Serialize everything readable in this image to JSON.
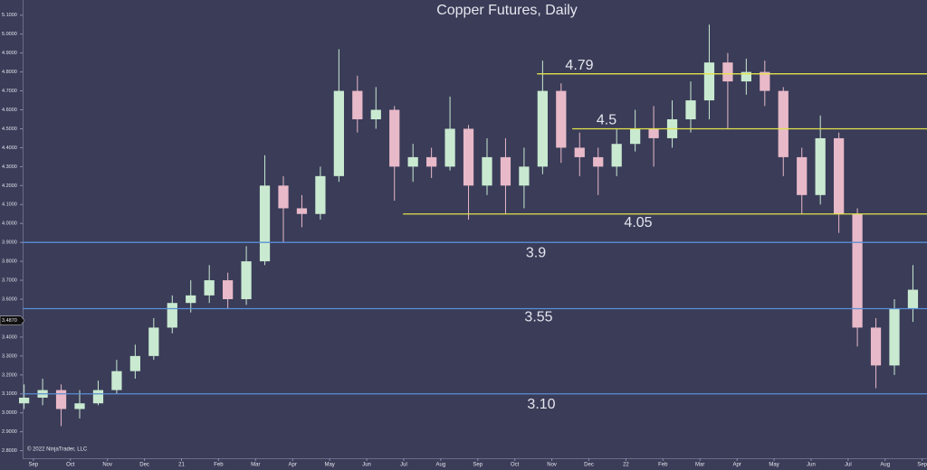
{
  "chart_data": {
    "type": "candlestick",
    "title": "Copper Futures, Daily",
    "copyright": "© 2022 NinjaTrader, LLC",
    "x": [
      -0.25,
      0.25,
      0.75,
      1.25,
      1.75,
      2.25,
      2.75,
      3.25,
      3.75,
      4.25,
      4.75,
      5.25,
      5.75,
      6.25,
      6.75,
      7.25,
      7.75,
      8.25,
      8.75,
      9.25,
      9.75,
      10.25,
      10.75,
      11.25,
      11.75,
      12.25,
      12.75,
      13.25,
      13.75,
      14.25,
      14.75,
      15.25,
      15.75,
      16.25,
      16.75,
      17.25,
      17.75,
      18.25,
      18.75,
      19.25,
      19.75,
      20.25,
      20.75,
      21.25,
      21.75,
      22.25,
      22.75,
      23.25,
      23.75
    ],
    "open": [
      3.05,
      3.08,
      3.12,
      3.02,
      3.05,
      3.12,
      3.22,
      3.3,
      3.45,
      3.58,
      3.62,
      3.7,
      3.6,
      3.8,
      4.2,
      4.08,
      4.05,
      4.25,
      4.7,
      4.55,
      4.6,
      4.3,
      4.35,
      4.3,
      4.5,
      4.2,
      4.35,
      4.2,
      4.3,
      4.7,
      4.4,
      4.35,
      4.3,
      4.42,
      4.5,
      4.45,
      4.55,
      4.65,
      4.85,
      4.75,
      4.8,
      4.7,
      4.35,
      4.15,
      4.45,
      4.05,
      3.45,
      3.25,
      3.55
    ],
    "high": [
      3.15,
      3.18,
      3.15,
      3.12,
      3.17,
      3.28,
      3.36,
      3.5,
      3.62,
      3.7,
      3.78,
      3.74,
      3.88,
      4.36,
      4.25,
      4.15,
      4.3,
      4.92,
      4.78,
      4.72,
      4.62,
      4.42,
      4.4,
      4.67,
      4.52,
      4.45,
      4.45,
      4.4,
      4.86,
      4.74,
      4.48,
      4.4,
      4.5,
      4.6,
      4.62,
      4.65,
      4.75,
      5.05,
      4.9,
      4.87,
      4.86,
      4.72,
      4.4,
      4.57,
      4.48,
      4.08,
      3.5,
      3.6,
      3.78
    ],
    "low": [
      3.02,
      3.04,
      2.93,
      2.97,
      3.04,
      3.1,
      3.18,
      3.28,
      3.42,
      3.53,
      3.58,
      3.55,
      3.57,
      3.78,
      3.9,
      3.98,
      4.02,
      4.22,
      4.48,
      4.5,
      4.12,
      4.22,
      4.24,
      4.28,
      4.02,
      4.15,
      4.05,
      4.08,
      4.26,
      4.32,
      4.25,
      4.15,
      4.25,
      4.38,
      4.3,
      4.4,
      4.48,
      4.55,
      4.5,
      4.68,
      4.62,
      4.25,
      4.05,
      4.1,
      3.95,
      3.35,
      3.13,
      3.2,
      3.48
    ],
    "close": [
      3.08,
      3.12,
      3.02,
      3.05,
      3.12,
      3.22,
      3.3,
      3.45,
      3.58,
      3.62,
      3.7,
      3.6,
      3.8,
      4.2,
      4.08,
      4.05,
      4.25,
      4.7,
      4.55,
      4.6,
      4.3,
      4.35,
      4.3,
      4.5,
      4.2,
      4.35,
      4.2,
      4.3,
      4.7,
      4.4,
      4.35,
      4.3,
      4.42,
      4.5,
      4.45,
      4.55,
      4.65,
      4.85,
      4.75,
      4.8,
      4.7,
      4.35,
      4.15,
      4.45,
      4.05,
      3.45,
      3.25,
      3.55,
      3.65
    ],
    "up_color": "#c9ead0",
    "down_color": "#e8b9c8",
    "xlim": [
      -0.29,
      24.13
    ],
    "xticks": [
      {
        "value": 0,
        "label": "Sep"
      },
      {
        "value": 1,
        "label": "Oct"
      },
      {
        "value": 2,
        "label": "Nov"
      },
      {
        "value": 3,
        "label": "Dec"
      },
      {
        "value": 4,
        "label": "21"
      },
      {
        "value": 5,
        "label": "Feb"
      },
      {
        "value": 6,
        "label": "Mar"
      },
      {
        "value": 7,
        "label": "Apr"
      },
      {
        "value": 8,
        "label": "May"
      },
      {
        "value": 9,
        "label": "Jun"
      },
      {
        "value": 10,
        "label": "Jul"
      },
      {
        "value": 11,
        "label": "Aug"
      },
      {
        "value": 12,
        "label": "Sep"
      },
      {
        "value": 13,
        "label": "Oct"
      },
      {
        "value": 14,
        "label": "Nov"
      },
      {
        "value": 15,
        "label": "Dec"
      },
      {
        "value": 16,
        "label": "22"
      },
      {
        "value": 17,
        "label": "Feb"
      },
      {
        "value": 18,
        "label": "Mar"
      },
      {
        "value": 19,
        "label": "Apr"
      },
      {
        "value": 20,
        "label": "May"
      },
      {
        "value": 21,
        "label": "Jun"
      },
      {
        "value": 22,
        "label": "Jul"
      },
      {
        "value": 23,
        "label": "Aug"
      },
      {
        "value": 24,
        "label": "Sep"
      }
    ],
    "ylim": [
      2.76,
      5.18
    ],
    "yticks": [
      {
        "value": 5.1,
        "label": "5.1000"
      },
      {
        "value": 5.0,
        "label": "5.0000"
      },
      {
        "value": 4.9,
        "label": "4.9000"
      },
      {
        "value": 4.8,
        "label": "4.8000"
      },
      {
        "value": 4.7,
        "label": "4.7000"
      },
      {
        "value": 4.6,
        "label": "4.6000"
      },
      {
        "value": 4.5,
        "label": "4.5000"
      },
      {
        "value": 4.4,
        "label": "4.4000"
      },
      {
        "value": 4.3,
        "label": "4.3000"
      },
      {
        "value": 4.2,
        "label": "4.2000"
      },
      {
        "value": 4.1,
        "label": "4.1000"
      },
      {
        "value": 4.0,
        "label": "4.0000"
      },
      {
        "value": 3.9,
        "label": "3.9000"
      },
      {
        "value": 3.8,
        "label": "3.8000"
      },
      {
        "value": 3.7,
        "label": "3.7000"
      },
      {
        "value": 3.6,
        "label": "3.6000"
      },
      {
        "value": 3.5,
        "label": "3.5000"
      },
      {
        "value": 3.4,
        "label": "3.4000"
      },
      {
        "value": 3.3,
        "label": "3.3000"
      },
      {
        "value": 3.2,
        "label": "3.2000"
      },
      {
        "value": 3.1,
        "label": "3.1000"
      },
      {
        "value": 3.0,
        "label": "3.0000"
      },
      {
        "value": 2.9,
        "label": "2.9000"
      },
      {
        "value": 2.8,
        "label": "2.8000"
      }
    ],
    "last_price": {
      "value": 3.487,
      "label": "3.4870"
    },
    "levels": [
      {
        "value": 4.79,
        "label": "4.79",
        "color": "#e3e34a",
        "x_start": 13.6
      },
      {
        "value": 4.5,
        "label": "4.5",
        "color": "#e3e34a",
        "x_start": 14.55
      },
      {
        "value": 4.05,
        "label": "4.05",
        "color": "#e3e34a",
        "x_start": 9.98
      },
      {
        "value": 3.9,
        "label": "3.9",
        "color": "#5b8fd6"
      },
      {
        "value": 3.55,
        "label": "3.55",
        "color": "#5b8fd6"
      },
      {
        "value": 3.1,
        "label": "3.10",
        "color": "#5b8fd6"
      }
    ]
  }
}
